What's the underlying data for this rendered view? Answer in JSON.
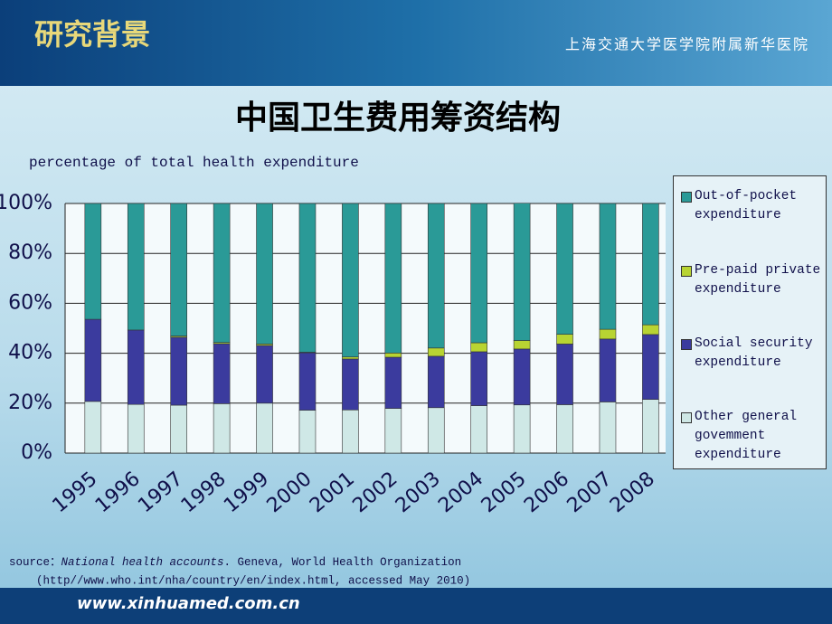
{
  "header": {
    "section": "研究背景",
    "institution": "上海交通大学医学院附属新华医院"
  },
  "chart_data": {
    "type": "stacked-bar",
    "title": "中国卫生费用筹资结构",
    "subtitle": "percentage of total health expenditure",
    "categories": [
      "1995",
      "1996",
      "1997",
      "1998",
      "1999",
      "2000",
      "2001",
      "2002",
      "2003",
      "2004",
      "2005",
      "2006",
      "2007",
      "2008"
    ],
    "series": [
      {
        "name": "Other general govemment expenditure",
        "color": "#cfe8e6",
        "values": [
          20.7,
          19.5,
          19.2,
          19.8,
          20.0,
          17.2,
          17.3,
          17.9,
          18.2,
          19.0,
          19.3,
          19.4,
          20.5,
          21.5
        ]
      },
      {
        "name": "Social security expenditure",
        "color": "#3b3b9e",
        "values": [
          32.9,
          29.8,
          27.2,
          24.0,
          23.1,
          23.0,
          20.4,
          20.5,
          20.6,
          21.6,
          22.4,
          24.3,
          25.2,
          26.0
        ]
      },
      {
        "name": "Pre-paid private expenditure",
        "color": "#b8d432",
        "values": [
          0,
          0,
          0.5,
          0.5,
          0.6,
          0.2,
          0.8,
          1.7,
          3.3,
          3.6,
          3.4,
          3.9,
          3.9,
          3.9
        ]
      },
      {
        "name": "Out-of-pocket expenditure",
        "color": "#2a9a97",
        "values": [
          46.4,
          50.7,
          53.1,
          55.7,
          56.3,
          59.6,
          61.5,
          59.9,
          57.9,
          55.8,
          55.0,
          52.4,
          50.4,
          48.6
        ]
      }
    ],
    "ylim": [
      0,
      100
    ],
    "yticks": [
      {
        "value": 0,
        "label": "0%"
      },
      {
        "value": 20,
        "label": "20%"
      },
      {
        "value": 40,
        "label": "40%"
      },
      {
        "value": 60,
        "label": "60%"
      },
      {
        "value": 80,
        "label": "80%"
      },
      {
        "value": 100,
        "label": "100%"
      }
    ],
    "grid": true
  },
  "source": {
    "prefix": "source：",
    "italic": "National health accounts",
    "rest": ". Geneva, World Health Organization",
    "line2": "(http//www.who.int/nha/country/en/index.html, accessed May 2010)"
  },
  "footer": {
    "url": "www.xinhuamed.com.cn"
  }
}
